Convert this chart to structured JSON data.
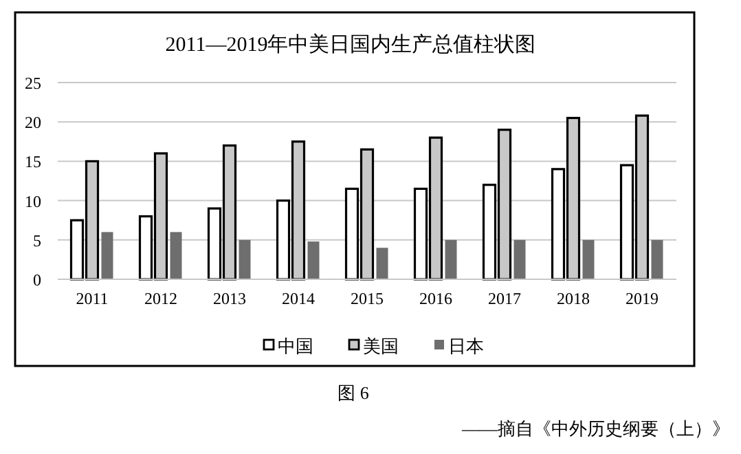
{
  "chart_data": {
    "type": "bar",
    "title": "2011—2019年中美日国内生产总值柱状图",
    "categories": [
      "2011",
      "2012",
      "2013",
      "2014",
      "2015",
      "2016",
      "2017",
      "2018",
      "2019"
    ],
    "series": [
      {
        "name": "中国",
        "color": "#ffffff",
        "values": [
          7.5,
          8,
          9,
          10,
          11.5,
          11.5,
          12,
          14,
          14.5
        ]
      },
      {
        "name": "美国",
        "color": "#c8c8c8",
        "values": [
          15,
          16,
          17,
          17.5,
          16.5,
          18,
          19,
          20.5,
          20.8
        ]
      },
      {
        "name": "日本",
        "color": "#6e6e6e",
        "values": [
          6,
          6,
          5,
          4.8,
          4,
          5,
          5,
          5,
          5
        ]
      }
    ],
    "ylim": [
      0,
      25
    ],
    "yticks": [
      0,
      5,
      10,
      15,
      20,
      25
    ],
    "grid": "y",
    "legend": "bottom",
    "annotations": [
      "图 6",
      "——摘自《中外历史纲要（上）》"
    ]
  }
}
